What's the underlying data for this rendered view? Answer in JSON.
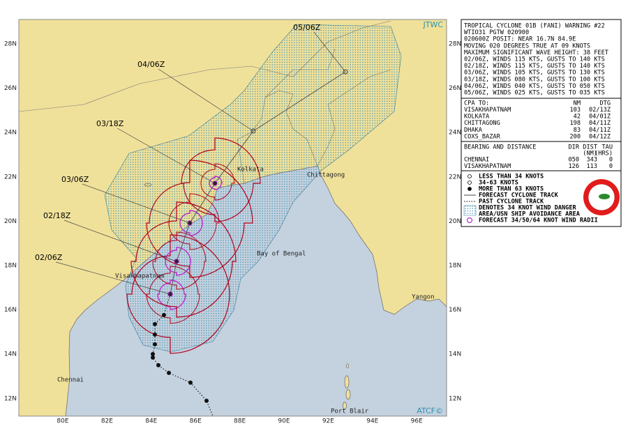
{
  "map": {
    "source": "JTWC",
    "credit": "ATCF©",
    "lat_labels": [
      "28N",
      "26N",
      "24N",
      "22N",
      "20N",
      "18N",
      "16N",
      "14N",
      "12N"
    ],
    "lon_labels": [
      "80E",
      "82E",
      "84E",
      "86E",
      "88E",
      "90E",
      "92E",
      "94E",
      "96E"
    ],
    "places": [
      "Kolkata",
      "Chittagong",
      "Bay of Bengal",
      "Visakhapatnam",
      "Yangon",
      "Chennai",
      "Port Blair"
    ],
    "forecast_labels": [
      "05/06Z",
      "04/06Z",
      "03/18Z",
      "03/06Z",
      "02/18Z",
      "02/06Z"
    ]
  },
  "warning": {
    "lines": [
      "TROPICAL CYCLONE 01B (FANI) WARNING #22",
      "WTIO31 PGTW 020900",
      "020600Z POSIT: NEAR 16.7N 84.9E",
      "MOVING 020 DEGREES TRUE AT 09 KNOTS",
      "MAXIMUM SIGNIFICANT WAVE HEIGHT: 38 FEET",
      "02/06Z, WINDS 115 KTS, GUSTS TO 140 KTS",
      "02/18Z, WINDS 115 KTS, GUSTS TO 140 KTS",
      "03/06Z, WINDS 105 KTS, GUSTS TO 130 KTS",
      "03/18Z, WINDS 080 KTS, GUSTS TO 100 KTS",
      "04/06Z, WINDS 040 KTS, GUSTS TO 050 KTS",
      "05/06Z, WINDS 025 KTS, GUSTS TO 035 KTS"
    ],
    "cpa": {
      "header": [
        "CPA TO:",
        "NM",
        "DTG"
      ],
      "rows": [
        [
          "VISAKHAPATNAM",
          "103",
          "02/13Z"
        ],
        [
          "KOLKATA",
          "42",
          "04/01Z"
        ],
        [
          "CHITTAGONG",
          "198",
          "04/11Z"
        ],
        [
          "DHAKA",
          "83",
          "04/11Z"
        ],
        [
          "COXS_BAZAR",
          "200",
          "04/12Z"
        ]
      ]
    },
    "bearing": {
      "header": [
        "BEARING AND DISTANCE",
        "DIR",
        "DIST",
        "TAU"
      ],
      "subheader": [
        "(NM)",
        "(HRS)"
      ],
      "rows": [
        [
          "CHENNAI",
          "050",
          "343",
          "0"
        ],
        [
          "VISAKHAPATNAM",
          "126",
          "113",
          "0"
        ]
      ]
    },
    "legend": [
      "LESS THAN 34 KNOTS",
      "34-63 KNOTS",
      "MORE THAN 63 KNOTS",
      "FORECAST CYCLONE TRACK",
      "PAST CYCLONE TRACK",
      "DENOTES 34 KNOT WIND DANGER",
      "AREA/USN SHIP AVOIDANCE AREA",
      "FORECAST 34/50/64 KNOT WIND RADII"
    ]
  }
}
